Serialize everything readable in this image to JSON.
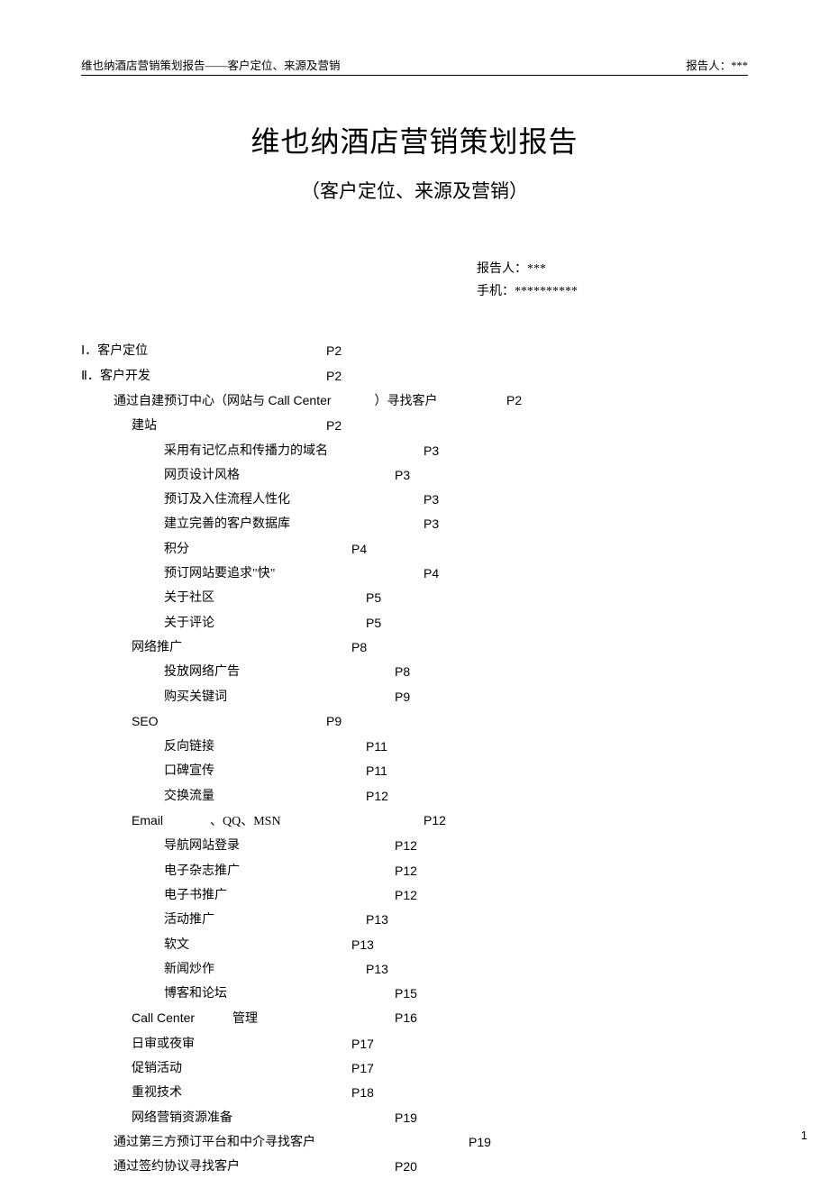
{
  "header": {
    "left": "维也纳酒店营销策划报告——客户定位、来源及营销",
    "right": "报告人：***"
  },
  "title": "维也纳酒店营销策划报告",
  "subtitle": "（客户定位、来源及营销）",
  "reporter": {
    "line1": "报告人：***",
    "line2": "手机：**********"
  },
  "toc": [
    {
      "text": "Ⅰ．客户定位",
      "page": "P2",
      "pcol": "p-col-1",
      "lvl": "lvl0"
    },
    {
      "text": "Ⅱ．客户开发",
      "page": "P2",
      "pcol": "p-col-1",
      "lvl": "lvl0"
    },
    {
      "text_pre": "通过自建预订中心（网站与 ",
      "text_en": "Call Center",
      "text_post": "）寻找客户",
      "page": "P2",
      "pcol": "p-col-7",
      "lvl": "lvl1",
      "mixed": true,
      "gap_after_en": 48
    },
    {
      "text": "建站",
      "page": "P2",
      "pcol": "p-col-1",
      "lvl": "lvl2"
    },
    {
      "text": "采用有记忆点和传播力的域名",
      "page": "P3",
      "pcol": "p-col-5",
      "lvl": "lvl3"
    },
    {
      "text": "网页设计风格",
      "page": "P3",
      "pcol": "p-col-4",
      "lvl": "lvl3"
    },
    {
      "text": "预订及入住流程人性化",
      "page": "P3",
      "pcol": "p-col-5",
      "lvl": "lvl3"
    },
    {
      "text": "建立完善的客户数据库",
      "page": "P3",
      "pcol": "p-col-5",
      "lvl": "lvl3"
    },
    {
      "text": "积分",
      "page": "P4",
      "pcol": "p-col-2",
      "lvl": "lvl3"
    },
    {
      "text": "预订网站要追求\"快\"",
      "page": "P4",
      "pcol": "p-col-5",
      "lvl": "lvl3"
    },
    {
      "text": "关于社区",
      "page": "P5",
      "pcol": "p-col-3",
      "lvl": "lvl3"
    },
    {
      "text": "关于评论",
      "page": "P5",
      "pcol": "p-col-3",
      "lvl": "lvl3"
    },
    {
      "text": "网络推广",
      "page": "P8",
      "pcol": "p-col-2",
      "lvl": "lvl2"
    },
    {
      "text": "投放网络广告",
      "page": "P8",
      "pcol": "p-col-4",
      "lvl": "lvl3"
    },
    {
      "text": "购买关键词",
      "page": "P9",
      "pcol": "p-col-4",
      "lvl": "lvl3"
    },
    {
      "text_en": "SEO",
      "page": "P9",
      "pcol": "p-col-1",
      "lvl": "lvl2",
      "en_gap": 126,
      "en_only": true
    },
    {
      "text": "反向链接",
      "page": "P11",
      "pcol": "p-col-3",
      "lvl": "lvl3"
    },
    {
      "text": "口碑宣传",
      "page": "P11",
      "pcol": "p-col-3",
      "lvl": "lvl3"
    },
    {
      "text": "交换流量",
      "page": "P12",
      "pcol": "p-col-3",
      "lvl": "lvl3"
    },
    {
      "text_en": "Email",
      "text_post": "、QQ、MSN",
      "page": "P12",
      "pcol": "p-col-5",
      "lvl": "lvl2",
      "mixed2": true,
      "gap1": 52
    },
    {
      "text": "导航网站登录",
      "page": "P12",
      "pcol": "p-col-4",
      "lvl": "lvl3"
    },
    {
      "text": "电子杂志推广",
      "page": "P12",
      "pcol": "p-col-4",
      "lvl": "lvl3"
    },
    {
      "text": "电子书推广",
      "page": "P12",
      "pcol": "p-col-4",
      "lvl": "lvl3"
    },
    {
      "text": "活动推广",
      "page": "P13",
      "pcol": "p-col-3",
      "lvl": "lvl3"
    },
    {
      "text": "软文",
      "page": "P13",
      "pcol": "p-col-2",
      "lvl": "lvl3"
    },
    {
      "text": "新闻炒作",
      "page": "P13",
      "pcol": "p-col-3",
      "lvl": "lvl3"
    },
    {
      "text": "博客和论坛",
      "page": "P15",
      "pcol": "p-col-4",
      "lvl": "lvl3"
    },
    {
      "text_en": "Call Center",
      "text_post": "管理",
      "page": "P16",
      "pcol": "p-col-4",
      "lvl": "lvl2",
      "mixed2": true,
      "gap1": 42
    },
    {
      "text": "日审或夜审",
      "page": "P17",
      "pcol": "p-col-2",
      "lvl": "lvl2"
    },
    {
      "text": "促销活动",
      "page": "P17",
      "pcol": "p-col-2",
      "lvl": "lvl2"
    },
    {
      "text": "重视技术",
      "page": "P18",
      "pcol": "p-col-2",
      "lvl": "lvl2"
    },
    {
      "text": "网络营销资源准备",
      "page": "P19",
      "pcol": "p-col-4",
      "lvl": "lvl2"
    },
    {
      "text": "通过第三方预订平台和中介寻找客户",
      "page": "P19",
      "pcol": "p-col-6",
      "lvl": "lvl1"
    },
    {
      "text": "通过签约协议寻找客户",
      "page": "P20",
      "pcol": "p-col-4",
      "lvl": "lvl1"
    }
  ],
  "page_number": "1"
}
